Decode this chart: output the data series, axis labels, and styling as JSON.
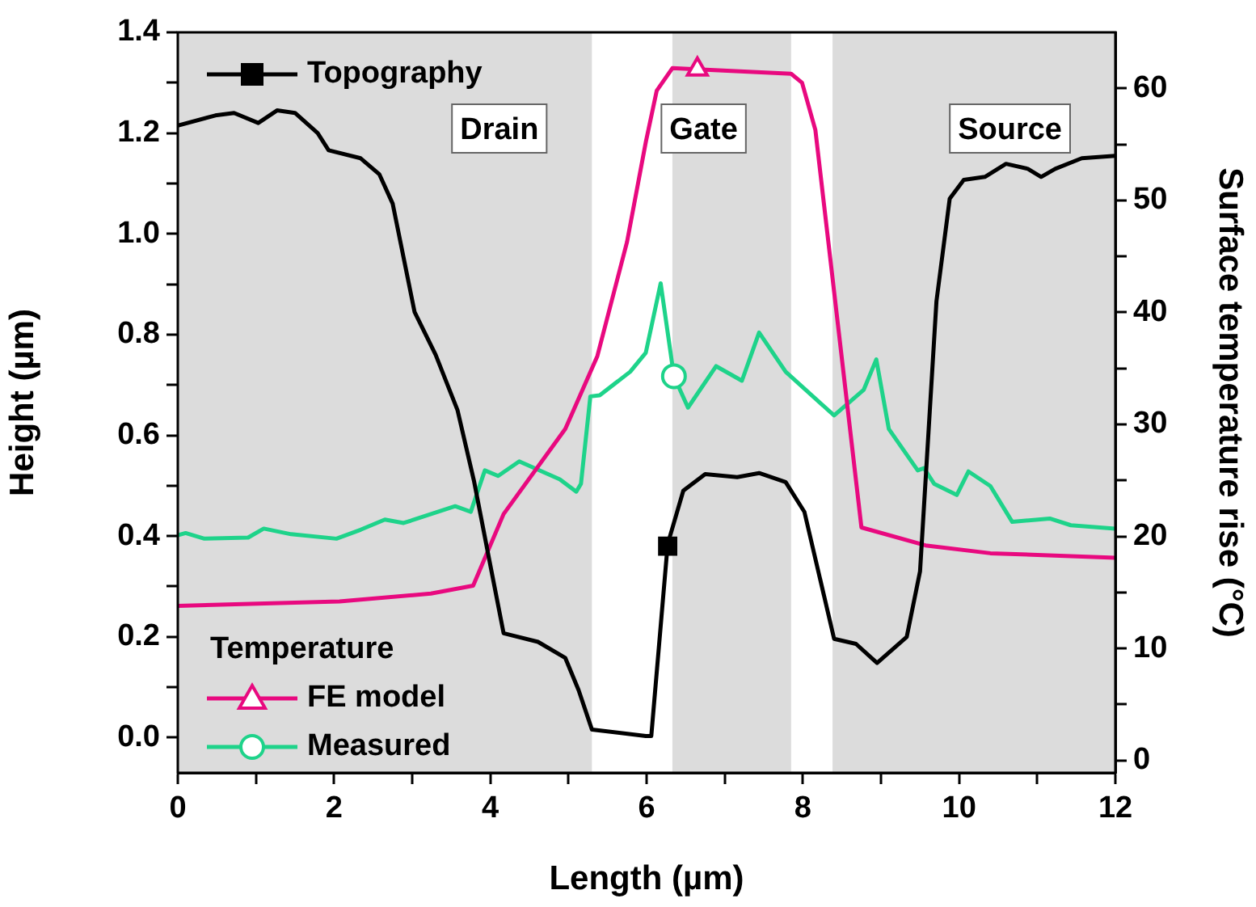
{
  "chart_data": {
    "type": "line",
    "xlabel": "Length (µm)",
    "ylabel": "Height (µm)",
    "y2label": "Surface temperature rise (°C)",
    "legend_title": "Temperature",
    "legend": "left",
    "grid": false,
    "line_style": "solid",
    "xlim": [
      0,
      12
    ],
    "xticks": [
      0,
      {
        "value": 1,
        "label": null
      },
      2,
      {
        "value": 3,
        "label": null
      },
      4,
      {
        "value": 5,
        "label": null
      },
      6,
      {
        "value": 7,
        "label": null
      },
      8,
      {
        "value": 9,
        "label": null
      },
      10,
      {
        "value": 11,
        "label": null
      },
      12
    ],
    "ylim": [
      -0.07,
      1.4
    ],
    "yticks": [
      {
        "value": 0,
        "label": "0.0"
      },
      {
        "value": 0.1,
        "label": null
      },
      {
        "value": 0.2,
        "label": "0.2"
      },
      {
        "value": 0.3,
        "label": null
      },
      {
        "value": 0.4,
        "label": "0.4"
      },
      {
        "value": 0.5,
        "label": null
      },
      {
        "value": 0.6,
        "label": "0.6"
      },
      {
        "value": 0.7,
        "label": null
      },
      {
        "value": 0.8,
        "label": "0.8"
      },
      {
        "value": 0.9,
        "label": null
      },
      {
        "value": 1,
        "label": "1.0"
      },
      {
        "value": 1.1,
        "label": null
      },
      {
        "value": 1.2,
        "label": "1.2"
      },
      {
        "value": 1.3,
        "label": null
      },
      {
        "value": 1.4,
        "label": "1.4"
      }
    ],
    "y2lim": [
      -1.1,
      65
    ],
    "y2ticks": [
      0,
      {
        "value": 5,
        "label": null
      },
      10,
      {
        "value": 15,
        "label": null
      },
      20,
      {
        "value": 25,
        "label": null
      },
      30,
      {
        "value": 35,
        "label": null
      },
      40,
      {
        "value": 45,
        "label": null
      },
      50,
      {
        "value": 55,
        "label": null
      },
      60
    ],
    "bands": [
      {
        "axis": "x",
        "from": 0,
        "to": 5.3,
        "label": "Drain",
        "color": "#dcdcdc"
      },
      {
        "axis": "x",
        "from": 6.33,
        "to": 7.85,
        "label": "Gate",
        "color": "#dcdcdc"
      },
      {
        "axis": "x",
        "from": 8.38,
        "to": 12,
        "label": "Source",
        "color": "#dcdcdc"
      }
    ],
    "series": [
      {
        "type": "scatter",
        "color": "#000000",
        "axis": "y",
        "marker": "square",
        "x": [
          6.27
        ],
        "values": [
          0.38
        ]
      },
      {
        "type": "scatter",
        "color": "#e8097f",
        "axis": "y2",
        "marker": "triangle",
        "x": [
          6.65
        ],
        "values": [
          61.7
        ]
      },
      {
        "type": "scatter",
        "color": "#1ed38a",
        "axis": "y2",
        "marker": "circle",
        "x": [
          6.35
        ],
        "values": [
          34.3
        ]
      },
      {
        "name": "Topography",
        "color": "#000000",
        "axis": "y",
        "marker": "none",
        "x": [
          0,
          0.48,
          0.72,
          1.03,
          1.27,
          1.5,
          1.79,
          1.93,
          2.34,
          2.58,
          2.75,
          3.03,
          3.3,
          3.58,
          3.79,
          3.99,
          4.17,
          4.61,
          4.96,
          5.13,
          5.3,
          5.99,
          6.06,
          6.27,
          6.47,
          6.75,
          7.16,
          7.44,
          7.78,
          8.02,
          8.4,
          8.68,
          8.95,
          9.33,
          9.5,
          9.71,
          9.88,
          10.06,
          10.33,
          10.6,
          10.88,
          11.05,
          11.23,
          11.57,
          12
        ],
        "values": [
          1.215,
          1.235,
          1.24,
          1.22,
          1.245,
          1.24,
          1.2,
          1.166,
          1.15,
          1.118,
          1.06,
          0.845,
          0.76,
          0.65,
          0.51,
          0.35,
          0.207,
          0.19,
          0.158,
          0.094,
          0.016,
          0.003,
          0.003,
          0.384,
          0.49,
          0.523,
          0.517,
          0.525,
          0.507,
          0.448,
          0.196,
          0.186,
          0.148,
          0.2,
          0.33,
          0.866,
          1.07,
          1.107,
          1.113,
          1.139,
          1.129,
          1.113,
          1.129,
          1.15,
          1.155
        ]
      },
      {
        "name": "FE model",
        "color": "#e8097f",
        "axis": "y2",
        "marker": "none",
        "x": [
          0,
          2.07,
          3.24,
          3.78,
          4.17,
          4.96,
          5.37,
          5.75,
          5.99,
          6.13,
          6.33,
          6.65,
          7.85,
          7.99,
          8.16,
          8.75,
          9.57,
          10.4,
          12
        ],
        "values": [
          13.8,
          14.2,
          14.9,
          15.6,
          22,
          29.6,
          36.1,
          46.3,
          55.2,
          59.8,
          61.8,
          61.7,
          61.3,
          60.5,
          56.3,
          20.8,
          19.2,
          18.5,
          18.1
        ]
      },
      {
        "name": "Measured",
        "color": "#1ed38a",
        "axis": "y2",
        "marker": "none",
        "x": [
          0,
          0.1,
          0.34,
          0.9,
          1.1,
          1.45,
          2.03,
          2.34,
          2.65,
          2.89,
          3.55,
          3.75,
          3.93,
          4.1,
          4.37,
          4.89,
          5.1,
          5.16,
          5.28,
          5.4,
          5.79,
          5.99,
          6.18,
          6.35,
          6.53,
          6.89,
          7.22,
          7.44,
          7.78,
          8.4,
          8.78,
          8.94,
          9.1,
          9.47,
          9.55,
          9.68,
          9.97,
          10.12,
          10.4,
          10.68,
          11.16,
          11.43,
          12
        ],
        "values": [
          20.1,
          20.3,
          19.8,
          19.9,
          20.7,
          20.2,
          19.8,
          20.6,
          21.5,
          21.2,
          22.7,
          22.2,
          25.9,
          25.4,
          26.7,
          25.1,
          24,
          24.7,
          32.5,
          32.6,
          34.7,
          36.4,
          42.6,
          34.3,
          31.5,
          35.2,
          33.9,
          38.2,
          34.7,
          30.8,
          33.1,
          35.8,
          29.6,
          25.9,
          26.1,
          24.7,
          23.7,
          25.8,
          24.5,
          21.3,
          21.6,
          21,
          20.7
        ]
      }
    ]
  }
}
